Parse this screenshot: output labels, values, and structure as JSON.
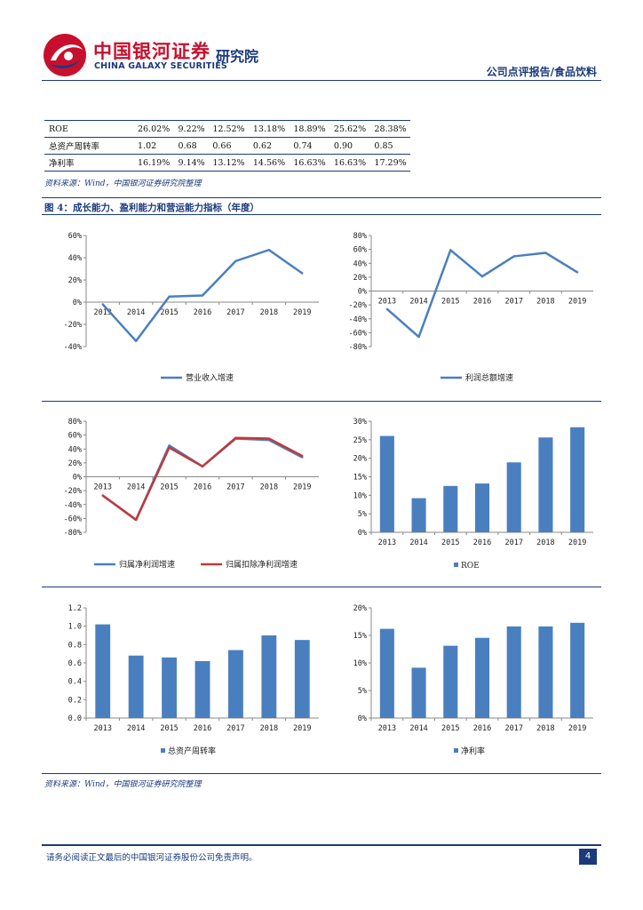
{
  "header": {
    "logo_cn": "中国银河证券",
    "logo_en": "CHINA GALAXY SECURITIES",
    "logo_sub": "研究院",
    "report_type": "公司点评报告/食品饮料"
  },
  "table": {
    "rows": [
      {
        "label": "ROE",
        "values": [
          "26.02%",
          "9.22%",
          "12.52%",
          "13.18%",
          "18.89%",
          "25.62%",
          "28.38%"
        ]
      },
      {
        "label": "总资产周转率",
        "values": [
          "1.02",
          "0.68",
          "0.66",
          "0.62",
          "0.74",
          "0.90",
          "0.85"
        ]
      },
      {
        "label": "净利率",
        "values": [
          "16.19%",
          "9.14%",
          "13.12%",
          "14.56%",
          "16.63%",
          "16.63%",
          "17.29%"
        ]
      }
    ]
  },
  "source1": "资料来源：Wind，中国银河证券研究院整理",
  "figure_title": "图 4：成长能力、盈利能力和营运能力指标（年度）",
  "chart_data": [
    {
      "type": "line",
      "categories": [
        "2013",
        "2014",
        "2015",
        "2016",
        "2017",
        "2018",
        "2019"
      ],
      "series": [
        {
          "name": "营业收入增速",
          "values": [
            -0.02,
            -0.35,
            0.05,
            0.06,
            0.37,
            0.47,
            0.26
          ],
          "color": "#4a7fbf"
        }
      ],
      "ylim": [
        -0.4,
        0.6
      ],
      "ticks": [
        -0.4,
        -0.2,
        0,
        0.2,
        0.4,
        0.6
      ],
      "tick_labels": [
        "-40%",
        "-20%",
        "0%",
        "20%",
        "40%",
        "60%"
      ]
    },
    {
      "type": "line",
      "categories": [
        "2013",
        "2014",
        "2015",
        "2016",
        "2017",
        "2018",
        "2019"
      ],
      "series": [
        {
          "name": "利润总额增速",
          "values": [
            -0.26,
            -0.66,
            0.59,
            0.21,
            0.5,
            0.55,
            0.27
          ],
          "color": "#4a7fbf"
        }
      ],
      "ylim": [
        -0.8,
        0.8
      ],
      "ticks": [
        -0.8,
        -0.6,
        -0.4,
        -0.2,
        0,
        0.2,
        0.4,
        0.6,
        0.8
      ],
      "tick_labels": [
        "-80%",
        "-60%",
        "-40%",
        "-20%",
        "0%",
        "20%",
        "40%",
        "60%",
        "80%"
      ]
    },
    {
      "type": "line",
      "categories": [
        "2013",
        "2014",
        "2015",
        "2016",
        "2017",
        "2018",
        "2019"
      ],
      "series": [
        {
          "name": "归属净利润增速",
          "values": [
            -0.27,
            -0.62,
            0.45,
            0.15,
            0.55,
            0.53,
            0.28
          ],
          "color": "#4a7fbf"
        },
        {
          "name": "归属扣除净利润增速",
          "values": [
            -0.27,
            -0.62,
            0.42,
            0.15,
            0.56,
            0.55,
            0.3
          ],
          "color": "#c0393b"
        }
      ],
      "ylim": [
        -0.8,
        0.8
      ],
      "ticks": [
        -0.8,
        -0.6,
        -0.4,
        -0.2,
        0,
        0.2,
        0.4,
        0.6,
        0.8
      ],
      "tick_labels": [
        "-80%",
        "-60%",
        "-40%",
        "-20%",
        "0%",
        "20%",
        "40%",
        "60%",
        "80%"
      ]
    },
    {
      "type": "bar",
      "categories": [
        "2013",
        "2014",
        "2015",
        "2016",
        "2017",
        "2018",
        "2019"
      ],
      "series": [
        {
          "name": "ROE",
          "values": [
            0.2602,
            0.0922,
            0.1252,
            0.1318,
            0.1889,
            0.2562,
            0.2838
          ],
          "color": "#4a7fbf"
        }
      ],
      "ylim": [
        0,
        0.3
      ],
      "ticks": [
        0,
        0.05,
        0.1,
        0.15,
        0.2,
        0.25,
        0.3
      ],
      "tick_labels": [
        "0%",
        "5%",
        "10%",
        "15%",
        "20%",
        "25%",
        "30%"
      ]
    },
    {
      "type": "bar",
      "categories": [
        "2013",
        "2014",
        "2015",
        "2016",
        "2017",
        "2018",
        "2019"
      ],
      "series": [
        {
          "name": "总资产周转率",
          "values": [
            1.02,
            0.68,
            0.66,
            0.62,
            0.74,
            0.9,
            0.85
          ],
          "color": "#4a7fbf"
        }
      ],
      "ylim": [
        0,
        1.2
      ],
      "ticks": [
        0,
        0.2,
        0.4,
        0.6,
        0.8,
        1.0,
        1.2
      ],
      "tick_labels": [
        "0.0",
        "0.2",
        "0.4",
        "0.6",
        "0.8",
        "1.0",
        "1.2"
      ]
    },
    {
      "type": "bar",
      "categories": [
        "2013",
        "2014",
        "2015",
        "2016",
        "2017",
        "2018",
        "2019"
      ],
      "series": [
        {
          "name": "净利率",
          "values": [
            0.1619,
            0.0914,
            0.1312,
            0.1456,
            0.1663,
            0.1663,
            0.1729
          ],
          "color": "#4a7fbf"
        }
      ],
      "ylim": [
        0,
        0.2
      ],
      "ticks": [
        0,
        0.05,
        0.1,
        0.15,
        0.2
      ],
      "tick_labels": [
        "0%",
        "5%",
        "10%",
        "15%",
        "20%"
      ]
    }
  ],
  "source2": "资料来源：Wind，中国银河证券研究院整理",
  "footer": {
    "disclaimer": "请务必阅读正文最后的中国银河证券股份公司免责声明。",
    "page": "4"
  }
}
